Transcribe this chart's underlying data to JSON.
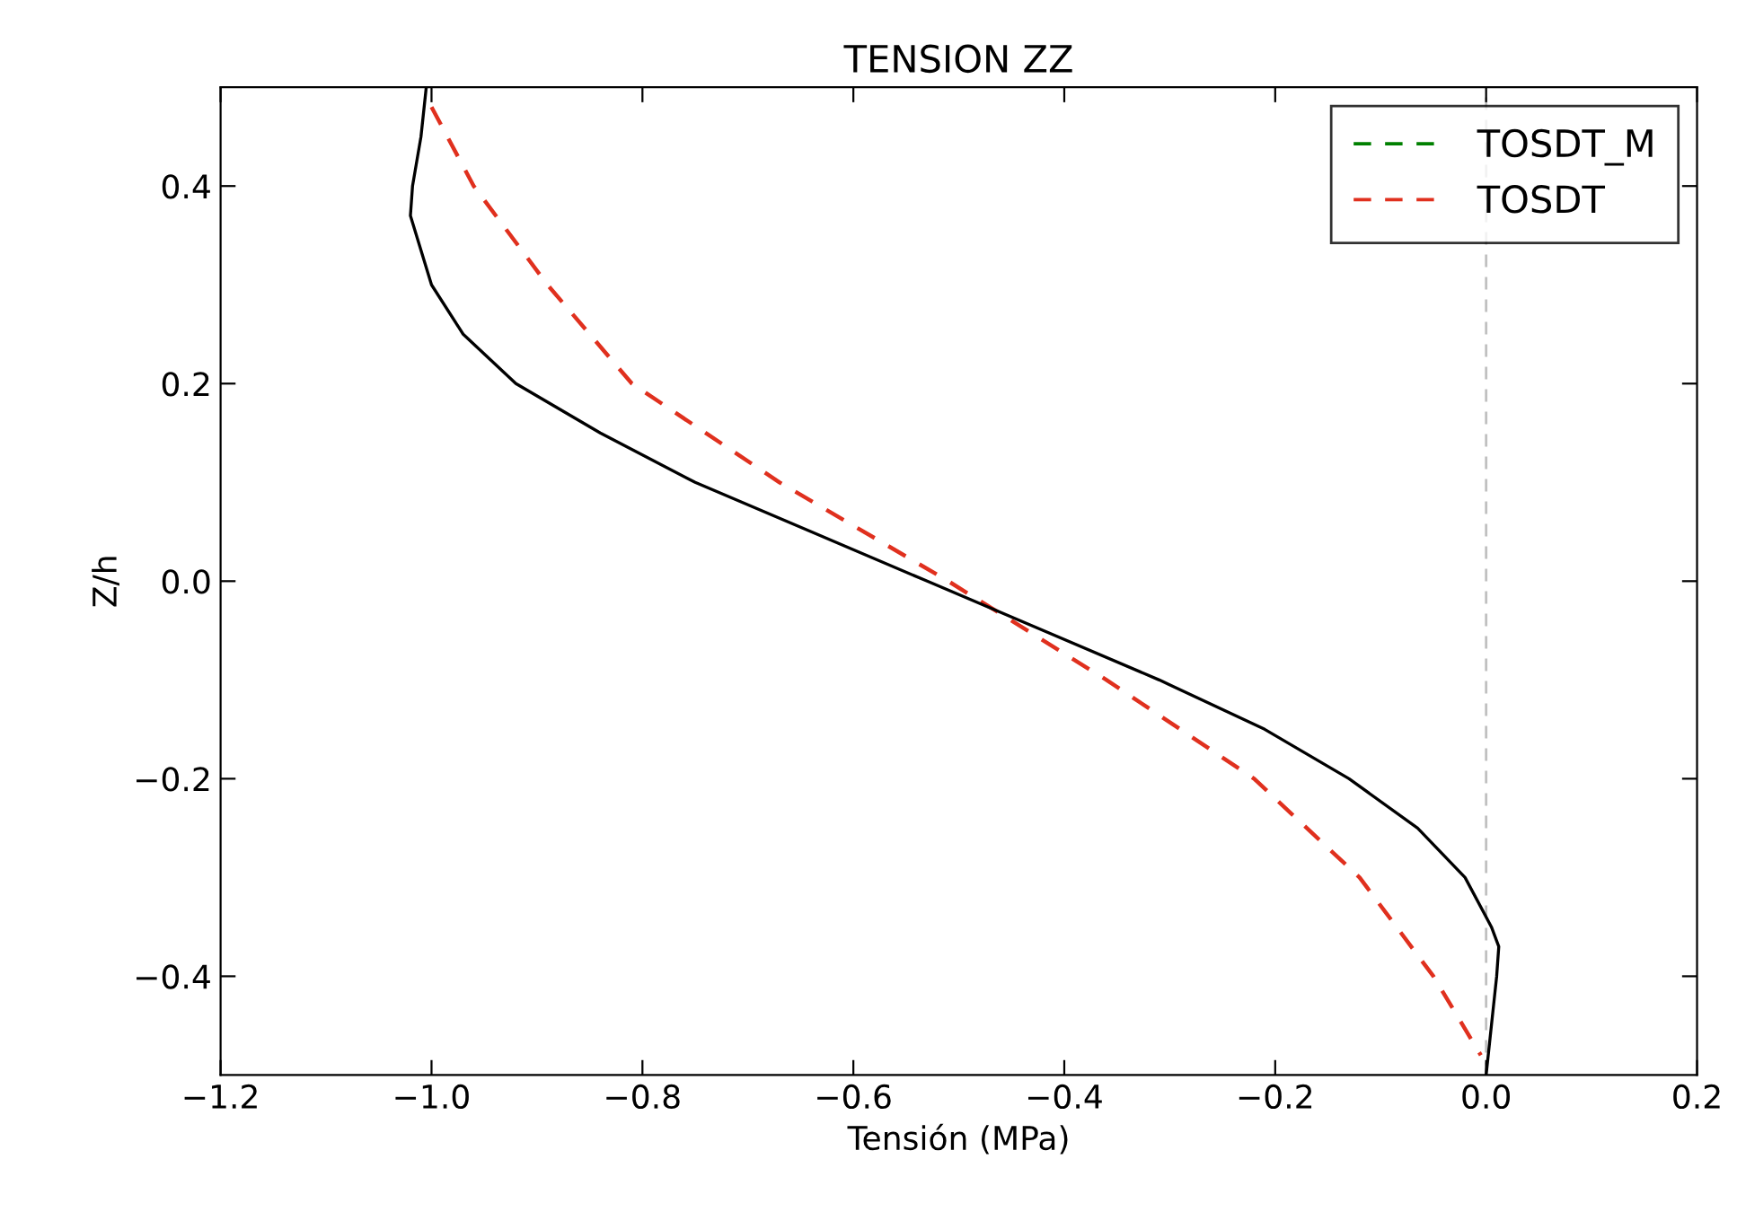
{
  "chart_data": {
    "type": "line",
    "title": "TENSION ZZ",
    "xlabel": "Tensión (MPa)",
    "ylabel": "Z/h",
    "xlim": [
      -1.2,
      0.2
    ],
    "xticks": [
      {
        "value": -1.2,
        "label": "−1.2"
      },
      {
        "value": -1.0,
        "label": "−1.0"
      },
      {
        "value": -0.8,
        "label": "−0.8"
      },
      {
        "value": -0.6,
        "label": "−0.6"
      },
      {
        "value": -0.4,
        "label": "−0.4"
      },
      {
        "value": -0.2,
        "label": "−0.2"
      },
      {
        "value": 0.0,
        "label": "0.0"
      },
      {
        "value": 0.2,
        "label": "0.2"
      }
    ],
    "ylim": [
      -0.5,
      0.5
    ],
    "yticks": [
      {
        "value": -0.4,
        "label": "−0.4"
      },
      {
        "value": -0.2,
        "label": "−0.2"
      },
      {
        "value": 0.0,
        "label": "0.0"
      },
      {
        "value": 0.2,
        "label": "0.2"
      },
      {
        "value": 0.4,
        "label": "0.4"
      }
    ],
    "grid": false,
    "legend": "top right",
    "ref_lines": [
      {
        "axis": "x",
        "value": 0.0,
        "color": "#c0c0c0",
        "line_style": "dashed"
      }
    ],
    "series": [
      {
        "name": "TOSDT_M",
        "color": "#008000",
        "line_style": "dashed",
        "x": [
          null,
          null,
          null
        ],
        "values": [
          null,
          null,
          null
        ]
      },
      {
        "name": "TOSDT",
        "color": "#e0301e",
        "line_style": "dashed",
        "x": [
          -1.0,
          -0.96,
          -0.89,
          -0.81,
          -0.67,
          -0.51,
          -0.36,
          -0.22,
          -0.12,
          -0.05,
          -0.005
        ],
        "values": [
          0.48,
          0.4,
          0.3,
          0.2,
          0.1,
          0.0,
          -0.1,
          -0.2,
          -0.3,
          -0.4,
          -0.48
        ]
      },
      {
        "color": "#000000",
        "line_style": "solid",
        "x": [
          -1.005,
          -1.01,
          -1.018,
          -1.02,
          -1.0,
          -0.97,
          -0.92,
          -0.84,
          -0.75,
          -0.64,
          -0.53,
          -0.42,
          -0.31,
          -0.21,
          -0.13,
          -0.065,
          -0.02,
          0.005,
          0.012,
          0.01,
          0.005,
          0.0
        ],
        "values": [
          0.5,
          0.45,
          0.4,
          0.37,
          0.3,
          0.25,
          0.2,
          0.15,
          0.1,
          0.05,
          0.0,
          -0.05,
          -0.1,
          -0.15,
          -0.2,
          -0.25,
          -0.3,
          -0.35,
          -0.37,
          -0.4,
          -0.45,
          -0.5
        ]
      }
    ]
  }
}
